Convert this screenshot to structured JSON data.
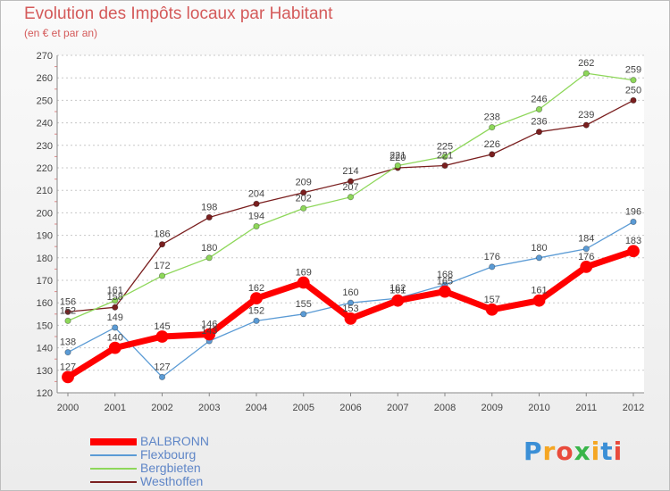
{
  "chart_data": {
    "type": "line",
    "title": "Evolution des Impôts locaux par Habitant",
    "subtitle": "(en € et par an)",
    "xlabel": "",
    "ylabel": "",
    "x": [
      "2000",
      "2001",
      "2002",
      "2003",
      "2004",
      "2005",
      "2006",
      "2007",
      "2008",
      "2009",
      "2010",
      "2011",
      "2012"
    ],
    "ylim": [
      120,
      270
    ],
    "yticks": [
      120,
      130,
      140,
      150,
      160,
      170,
      180,
      190,
      200,
      210,
      220,
      230,
      240,
      250,
      260,
      270
    ],
    "grid": "horizontal dashed",
    "legend_position": "bottom-left",
    "series": [
      {
        "name": "BALBRONN",
        "color": "#ff0000",
        "values": [
          127,
          140,
          145,
          146,
          162,
          169,
          153,
          161,
          165,
          157,
          161,
          176,
          183
        ]
      },
      {
        "name": "Flexbourg",
        "color": "#5b9bd5",
        "values": [
          138,
          149,
          127,
          143,
          152,
          155,
          160,
          162,
          168,
          176,
          180,
          184,
          196
        ]
      },
      {
        "name": "Bergbieten",
        "color": "#8ed75a",
        "values": [
          152,
          161,
          172,
          180,
          194,
          202,
          207,
          221,
          225,
          238,
          246,
          262,
          259
        ]
      },
      {
        "name": "Westhoffen",
        "color": "#7a1f1f",
        "values": [
          156,
          158,
          186,
          198,
          204,
          209,
          214,
          220,
          221,
          226,
          236,
          239,
          250
        ]
      }
    ]
  },
  "logo": {
    "letters": [
      "P",
      "r",
      "o",
      "x",
      "i",
      "t",
      "i"
    ],
    "colors": [
      "#3b8fd6",
      "#f5a623",
      "#e94b3c",
      "#39b54a",
      "#f5a623",
      "#3b8fd6",
      "#e94b3c"
    ]
  }
}
